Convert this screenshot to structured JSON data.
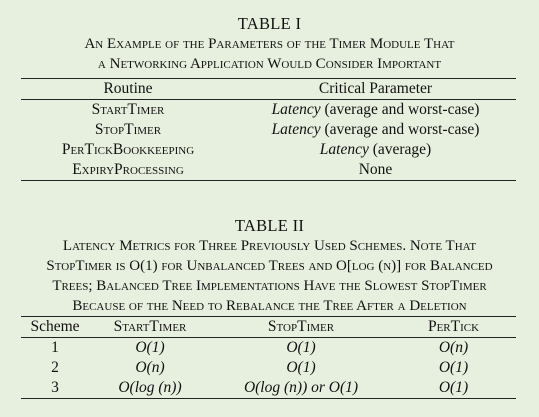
{
  "table1": {
    "title": "TABLE I",
    "caption_lines": [
      "An Example of the Parameters of the Timer Module That",
      "a Networking Application Would Consider Important"
    ],
    "headers": [
      "Routine",
      "Critical Parameter"
    ],
    "rows": [
      {
        "routine": "StartTimer",
        "param_italic": "Latency",
        "param_rest": " (average and worst-case)"
      },
      {
        "routine": "StopTimer",
        "param_italic": "Latency",
        "param_rest": " (average and worst-case)"
      },
      {
        "routine": "PerTickBookkeeping",
        "param_italic": "Latency",
        "param_rest": " (average)"
      },
      {
        "routine": "ExpiryProcessing",
        "param_italic": "",
        "param_rest": "None"
      }
    ]
  },
  "table2": {
    "title": "TABLE II",
    "caption_lines": [
      "Latency Metrics for Three Previously Used Schemes. Note That",
      "StopTimer is O(1) for Unbalanced Trees and O[log (n)] for Balanced",
      "Trees; Balanced Tree Implementations Have the Slowest StopTimer",
      "Because of the Need to Rebalance the Tree After a Deletion"
    ],
    "headers": [
      "Scheme",
      "StartTimer",
      "StopTimer",
      "PerTick"
    ],
    "rows": [
      {
        "scheme": "1",
        "start": "O(1)",
        "stop": "O(1)",
        "pertick": "O(n)"
      },
      {
        "scheme": "2",
        "start": "O(n)",
        "stop": "O(1)",
        "pertick": "O(1)"
      },
      {
        "scheme": "3",
        "start": "O(log (n))",
        "stop": "O(log (n)) or O(1)",
        "pertick": "O(1)"
      }
    ]
  }
}
